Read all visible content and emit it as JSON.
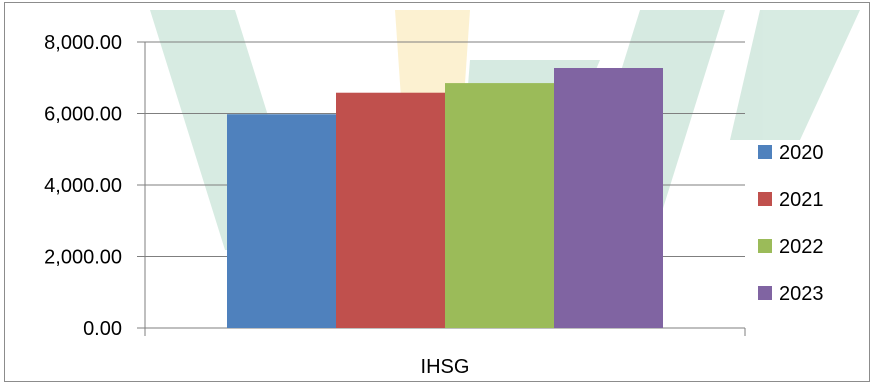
{
  "chart_data": {
    "type": "bar",
    "categories": [
      "IHSG"
    ],
    "series": [
      {
        "name": "2020",
        "values": [
          5979.07
        ],
        "color": "#4F81BD"
      },
      {
        "name": "2021",
        "values": [
          6581.48
        ],
        "color": "#C0504D"
      },
      {
        "name": "2022",
        "values": [
          6850.62
        ],
        "color": "#9BBB59"
      },
      {
        "name": "2023",
        "values": [
          7272.8
        ],
        "color": "#8064A2"
      }
    ],
    "yticks": [
      "0.00",
      "2,000.00",
      "4,000.00",
      "6,000.00",
      "8,000.00"
    ],
    "ylim": [
      0,
      8000
    ],
    "grid": true,
    "legend": "right",
    "title": "",
    "xlabel": "",
    "ylabel": ""
  }
}
